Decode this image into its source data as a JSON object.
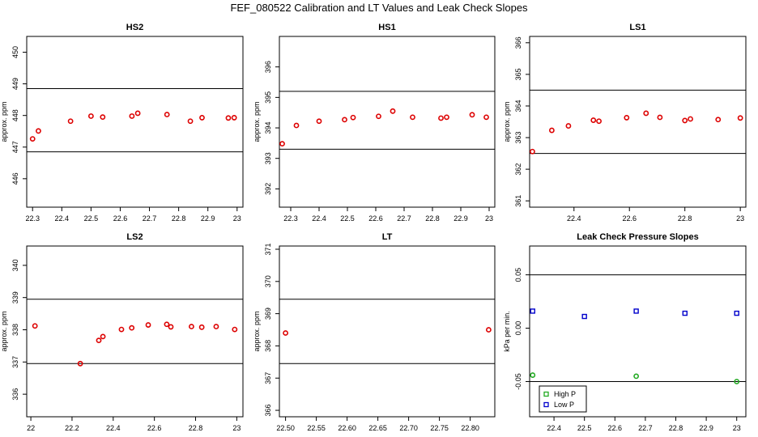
{
  "page": {
    "title": "FEF_080522  Calibration and LT Values and Leak Check Slopes"
  },
  "colors": {
    "points": "#dd0000",
    "high_p": "#22aa22",
    "low_p": "#0000cc",
    "axis": "#000000"
  },
  "chart_data": [
    {
      "type": "scatter",
      "title": "HS2",
      "xlabel": "",
      "ylabel": "approx. ppm",
      "xlim": [
        22.28,
        23.02
      ],
      "ylim": [
        445.1,
        450.5
      ],
      "xticks": [
        22.3,
        22.4,
        22.5,
        22.6,
        22.7,
        22.8,
        22.9,
        23.0
      ],
      "yticks": [
        446,
        447,
        448,
        449,
        450
      ],
      "hlines": [
        448.85,
        446.85
      ],
      "series": [
        {
          "x": [
            22.3,
            22.32,
            22.43,
            22.5,
            22.54,
            22.64,
            22.66,
            22.76,
            22.84,
            22.88,
            22.97,
            22.99
          ],
          "y": [
            447.26,
            447.51,
            447.82,
            447.98,
            447.95,
            447.98,
            448.07,
            448.03,
            447.82,
            447.93,
            447.92,
            447.93
          ]
        }
      ]
    },
    {
      "type": "scatter",
      "title": "HS1",
      "xlabel": "",
      "ylabel": "approx. ppm",
      "xlim": [
        22.26,
        23.02
      ],
      "ylim": [
        391.4,
        397.0
      ],
      "xticks": [
        22.3,
        22.4,
        22.5,
        22.6,
        22.7,
        22.8,
        22.9,
        23.0
      ],
      "yticks": [
        392,
        393,
        394,
        395,
        396
      ],
      "hlines": [
        395.2,
        393.3
      ],
      "series": [
        {
          "x": [
            22.27,
            22.32,
            22.4,
            22.49,
            22.52,
            22.61,
            22.66,
            22.73,
            22.83,
            22.85,
            22.94,
            22.99
          ],
          "y": [
            393.48,
            394.08,
            394.22,
            394.27,
            394.34,
            394.38,
            394.55,
            394.35,
            394.32,
            394.35,
            394.43,
            394.35
          ]
        }
      ]
    },
    {
      "type": "scatter",
      "title": "LS1",
      "xlabel": "",
      "ylabel": "approx. ppm",
      "xlim": [
        22.24,
        23.02
      ],
      "ylim": [
        360.8,
        366.2
      ],
      "xticks": [
        22.4,
        22.6,
        22.8,
        23.0
      ],
      "yticks": [
        361,
        362,
        363,
        364,
        365,
        366
      ],
      "hlines": [
        364.5,
        362.5
      ],
      "series": [
        {
          "x": [
            22.25,
            22.32,
            22.38,
            22.47,
            22.49,
            22.59,
            22.66,
            22.71,
            22.8,
            22.82,
            22.92,
            23.0
          ],
          "y": [
            362.56,
            363.23,
            363.37,
            363.55,
            363.52,
            363.63,
            363.77,
            363.64,
            363.54,
            363.59,
            363.57,
            363.62
          ]
        }
      ]
    },
    {
      "type": "scatter",
      "title": "LS2",
      "xlabel": "",
      "ylabel": "approx. ppm",
      "xlim": [
        21.98,
        23.03
      ],
      "ylim": [
        335.3,
        340.6
      ],
      "xticks": [
        22.0,
        22.2,
        22.4,
        22.6,
        22.8,
        23.0
      ],
      "yticks": [
        336,
        337,
        338,
        339,
        340
      ],
      "hlines": [
        338.95,
        336.95
      ],
      "series": [
        {
          "x": [
            22.02,
            22.24,
            22.33,
            22.35,
            22.44,
            22.49,
            22.57,
            22.66,
            22.68,
            22.78,
            22.83,
            22.9,
            22.99
          ],
          "y": [
            338.12,
            336.95,
            337.67,
            337.79,
            338.01,
            338.06,
            338.15,
            338.17,
            338.09,
            338.1,
            338.08,
            338.1,
            338.01
          ]
        }
      ]
    },
    {
      "type": "scatter",
      "title": "LT",
      "xlabel": "",
      "ylabel": "approx. ppm",
      "xlim": [
        22.49,
        22.84
      ],
      "ylim": [
        365.8,
        371.1
      ],
      "xticks": [
        22.5,
        22.55,
        22.6,
        22.65,
        22.7,
        22.75,
        22.8
      ],
      "xtick_labels": [
        "22.50",
        "22.55",
        "22.60",
        "22.65",
        "22.70",
        "22.75",
        "22.80"
      ],
      "yticks": [
        366,
        367,
        368,
        369,
        370,
        371
      ],
      "hlines": [
        369.45,
        367.45
      ],
      "series": [
        {
          "x": [
            22.5,
            22.83
          ],
          "y": [
            368.4,
            368.5
          ]
        }
      ]
    },
    {
      "type": "scatter",
      "title": "Leak Check Pressure Slopes",
      "xlabel": "",
      "ylabel": "kPa per min.",
      "xlim": [
        22.32,
        23.03
      ],
      "ylim": [
        -0.083,
        0.077
      ],
      "xticks": [
        22.4,
        22.5,
        22.6,
        22.7,
        22.8,
        22.9,
        23.0
      ],
      "yticks": [
        -0.05,
        0.0,
        0.05
      ],
      "ytick_labels": [
        "-0.05",
        "0.00",
        "0.05"
      ],
      "hlines": [
        0.05,
        -0.05
      ],
      "legend": "bottom-left",
      "series": [
        {
          "name": "High P",
          "color": "#22aa22",
          "x": [
            22.33,
            22.67,
            23.0
          ],
          "y": [
            -0.044,
            -0.045,
            -0.05
          ]
        },
        {
          "name": "Low P",
          "color": "#0000cc",
          "x": [
            22.33,
            22.5,
            22.67,
            22.83,
            23.0
          ],
          "y": [
            0.016,
            0.011,
            0.016,
            0.014,
            0.014
          ]
        }
      ]
    }
  ]
}
